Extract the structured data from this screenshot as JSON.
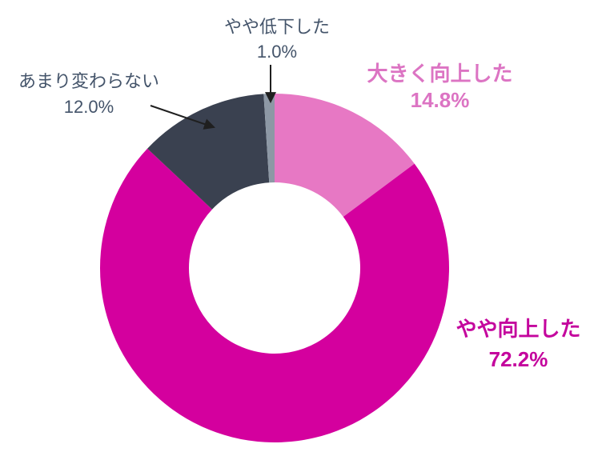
{
  "chart_data": {
    "type": "pie",
    "variant": "donut",
    "direction": "clockwise",
    "start_angle_deg": 0,
    "unit": "%",
    "hole_ratio": 0.49,
    "legend_position": "outside-callout-labels",
    "segments": [
      {
        "label": "大きく向上した",
        "value": 14.8,
        "pct_label": "14.8%",
        "color": "#E778C4",
        "label_color": "#DC74C3"
      },
      {
        "label": "やや向上した",
        "value": 72.2,
        "pct_label": "72.2%",
        "color": "#D4009E",
        "label_color": "#C4059D"
      },
      {
        "label": "あまり変わらない",
        "value": 12.0,
        "pct_label": "12.0%",
        "color": "#3A4150",
        "label_color": "#44546A"
      },
      {
        "label": "やや低下した",
        "value": 1.0,
        "pct_label": "1.0%",
        "color": "#8D98A5",
        "label_color": "#44546A"
      }
    ],
    "annotation_arrow_color": "#1F1F1F"
  }
}
